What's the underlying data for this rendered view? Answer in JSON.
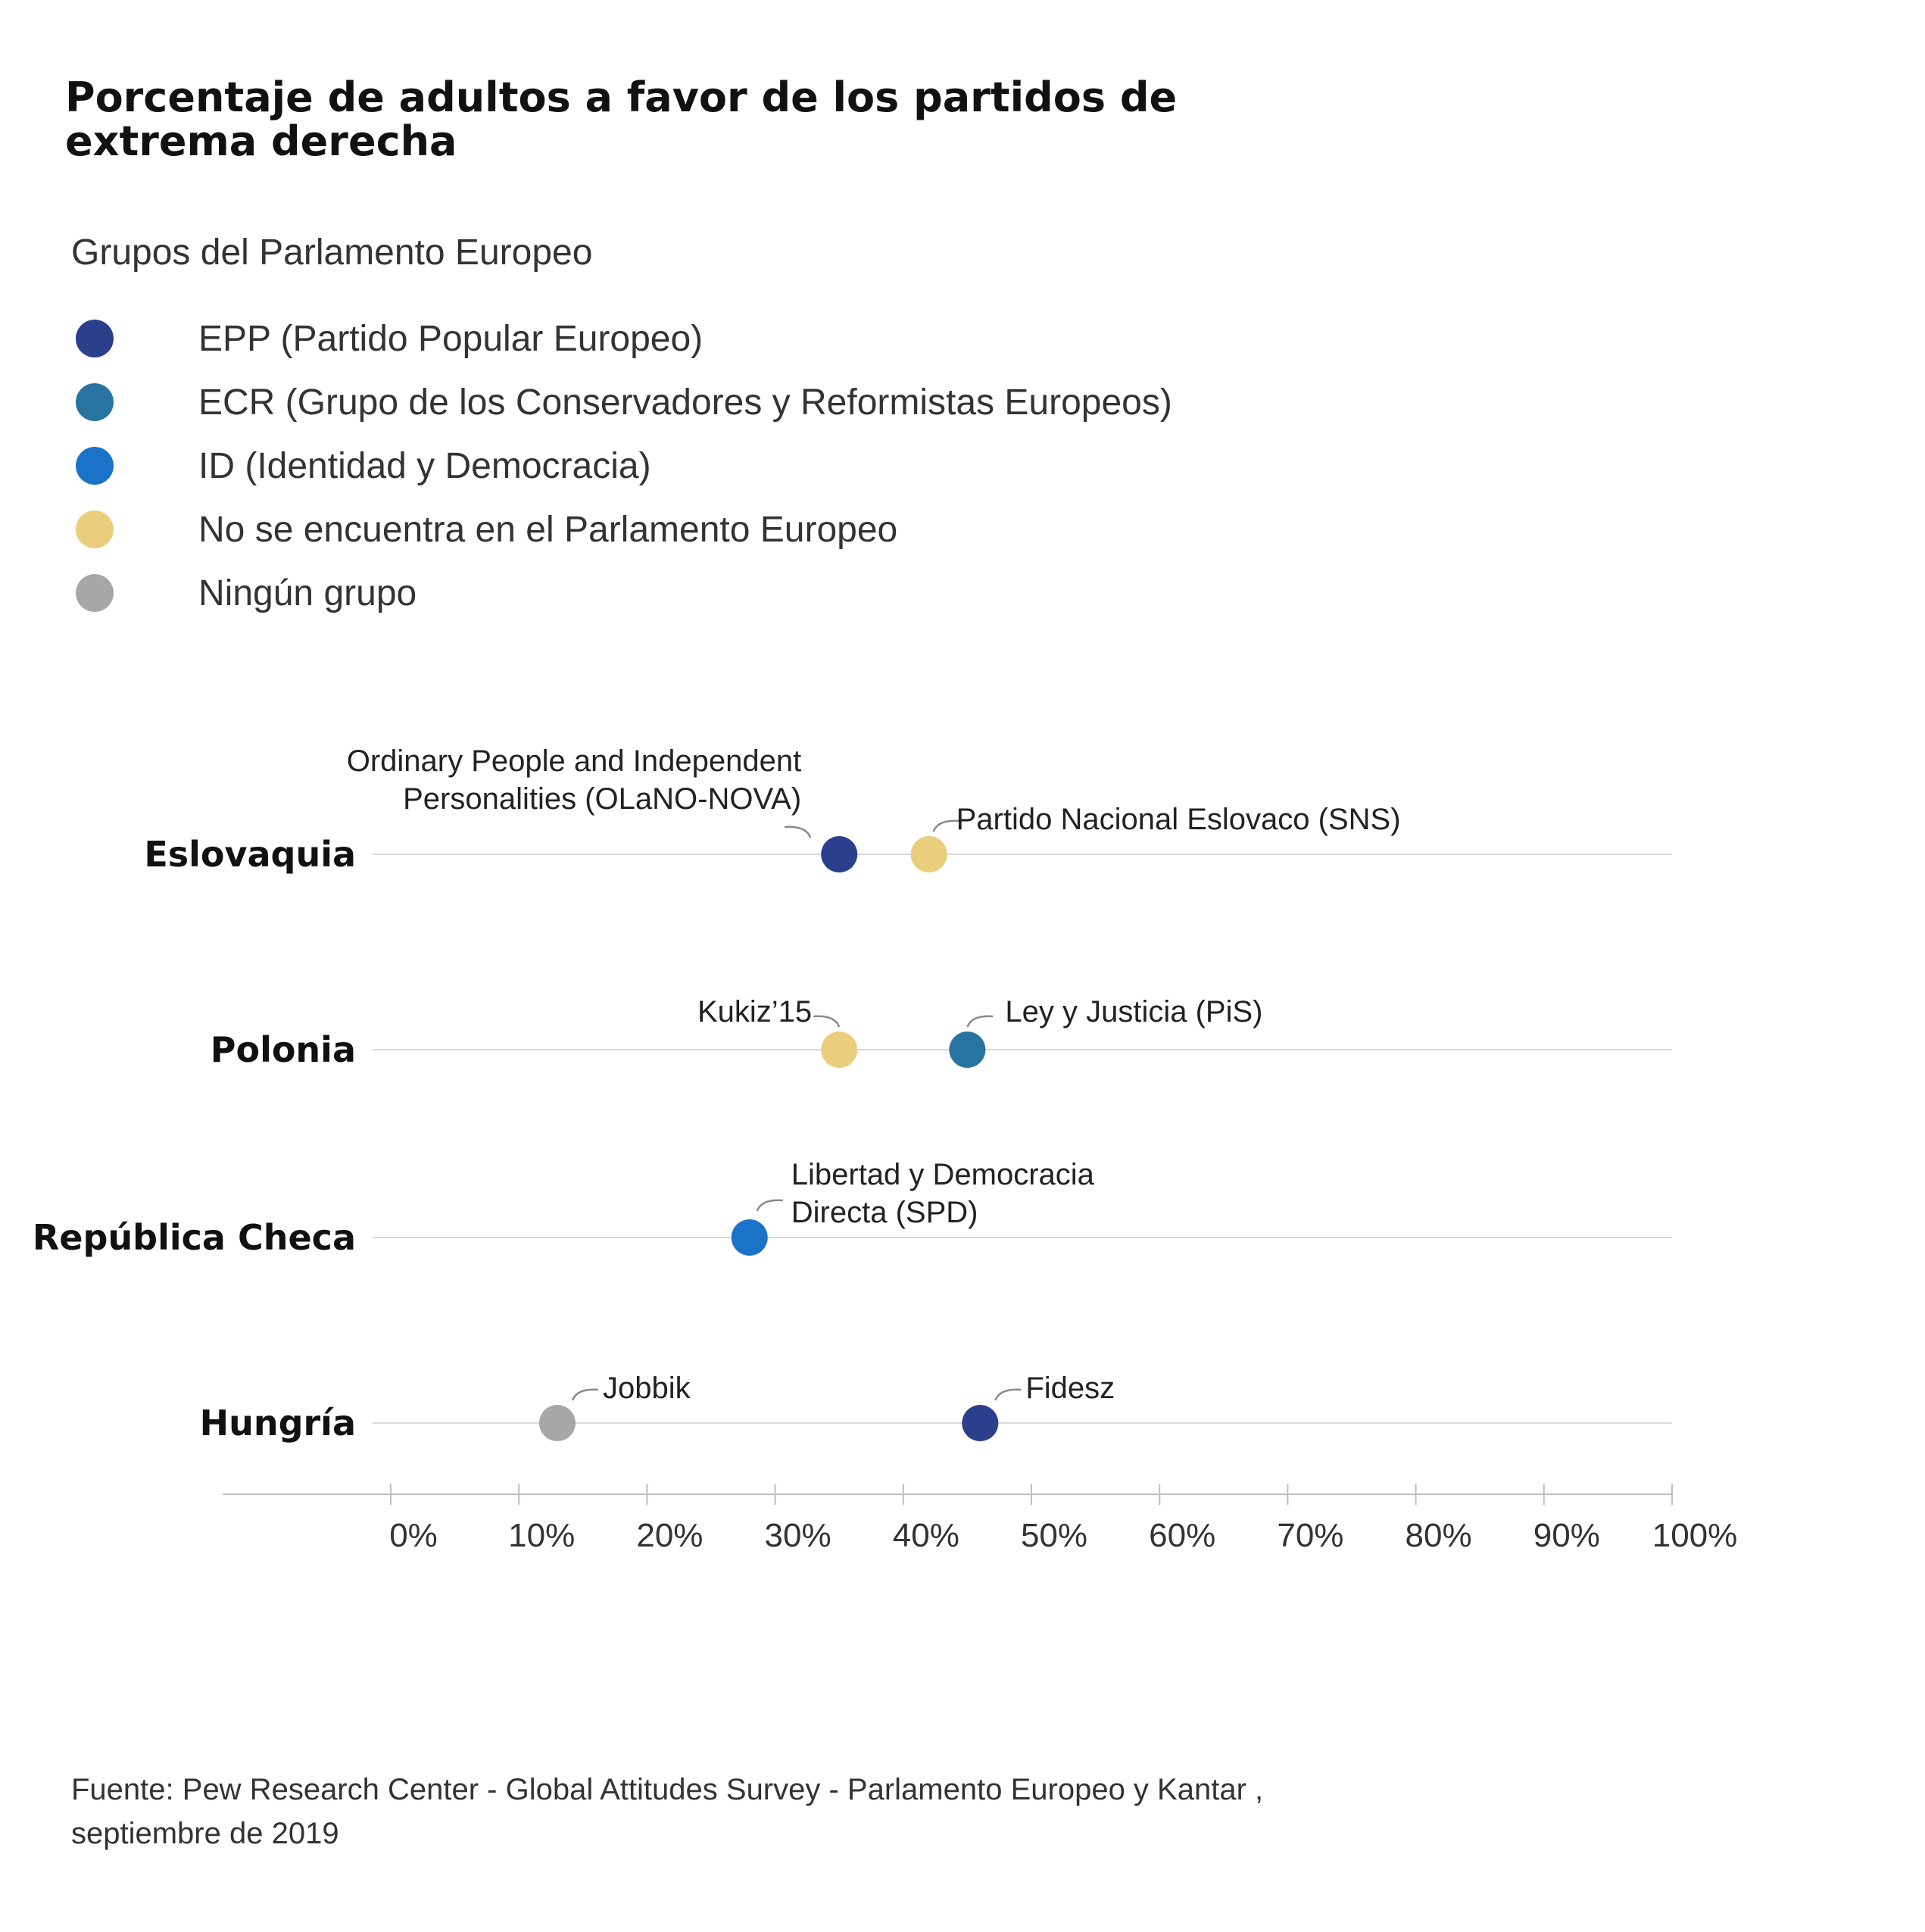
{
  "title": "Porcentaje de adultos a favor de los partidos de extrema derecha",
  "legend": {
    "title": "Grupos del Parlamento Europeo",
    "items": [
      {
        "key": "EPP",
        "label": "EPP (Partido Popular Europeo)",
        "color": "#2b3f8c"
      },
      {
        "key": "ECR",
        "label": "ECR (Grupo de los Conservadores y Reformistas Europeos)",
        "color": "#2874a0"
      },
      {
        "key": "ID",
        "label": "ID (Identidad y Democracia)",
        "color": "#1a73c9"
      },
      {
        "key": "NONE_EP",
        "label": "No se encuentra en el Parlamento Europeo",
        "color": "#ebcd7e"
      },
      {
        "key": "NI",
        "label": "Ningún grupo",
        "color": "#a6a7a9"
      }
    ]
  },
  "chart_data": {
    "type": "scatter",
    "xlim": [
      0,
      100
    ],
    "x_ticks": [
      "0%",
      "10%",
      "20%",
      "30%",
      "40%",
      "50%",
      "60%",
      "70%",
      "80%",
      "90%",
      "100%"
    ],
    "grid": false,
    "categories": [
      "Eslovaquia",
      "Polonia",
      "República Checa",
      "Hungría"
    ],
    "points": [
      {
        "country": "Eslovaquia",
        "party": "Ordinary People and Independent Personalities (OLaNO-NOVA)",
        "label_lines": [
          "Ordinary People and Independent",
          "Personalities (OLaNO-NOVA)"
        ],
        "group": "EPP",
        "value": 35
      },
      {
        "country": "Eslovaquia",
        "party": "Partido Nacional Eslovaco (SNS)",
        "label_lines": [
          "Partido Nacional Eslovaco (SNS)"
        ],
        "group": "NONE_EP",
        "value": 42
      },
      {
        "country": "Polonia",
        "party": "Kukiz'15",
        "label_lines": [
          "Kukiz’15"
        ],
        "group": "NONE_EP",
        "value": 35
      },
      {
        "country": "Polonia",
        "party": "Ley y Justicia (PiS)",
        "label_lines": [
          "Ley y Justicia  (PiS)"
        ],
        "group": "ECR",
        "value": 45
      },
      {
        "country": "República Checa",
        "party": "Libertad y Democracia Directa (SPD)",
        "label_lines": [
          "Libertad y Democracia",
          "Directa (SPD)"
        ],
        "group": "ID",
        "value": 28
      },
      {
        "country": "Hungría",
        "party": "Jobbik",
        "label_lines": [
          "Jobbik"
        ],
        "group": "NI",
        "value": 13
      },
      {
        "country": "Hungría",
        "party": "Fidesz",
        "label_lines": [
          "Fidesz"
        ],
        "group": "EPP",
        "value": 46
      }
    ]
  },
  "footer": {
    "line1": "Fuente: Pew Research Center - Global Attitudes Survey - Parlamento Europeo y Kantar ,",
    "line2": "septiembre de 2019"
  }
}
